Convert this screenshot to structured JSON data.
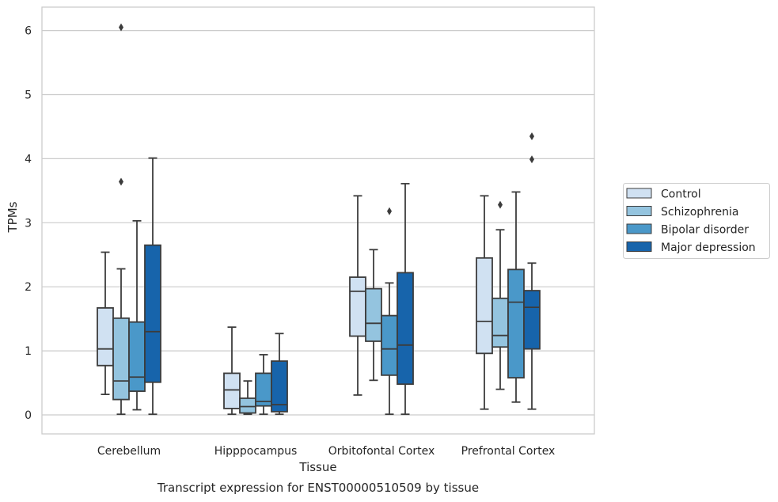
{
  "chart_data": {
    "type": "box",
    "title": "",
    "caption": "Transcript expression for ENST00000510509 by tissue",
    "xlabel": "Tissue",
    "ylabel": "TPMs",
    "ylim": [
      -0.3,
      6.35
    ],
    "yticks": [
      0,
      1,
      2,
      3,
      4,
      5,
      6
    ],
    "grid": "horizontal",
    "legend_position": "right",
    "categories": [
      "Cerebellum",
      "Hipppocampus",
      "Orbitofontal Cortex",
      "Prefrontal Cortex"
    ],
    "series": [
      {
        "name": "Control",
        "color": "#d0e1f2",
        "boxes": [
          {
            "whisker_low": 0.32,
            "q1": 0.77,
            "median": 1.03,
            "q3": 1.67,
            "whisker_high": 2.54,
            "outliers": []
          },
          {
            "whisker_low": 0.01,
            "q1": 0.1,
            "median": 0.39,
            "q3": 0.65,
            "whisker_high": 1.37,
            "outliers": []
          },
          {
            "whisker_low": 0.31,
            "q1": 1.23,
            "median": 1.93,
            "q3": 2.15,
            "whisker_high": 3.42,
            "outliers": []
          },
          {
            "whisker_low": 0.09,
            "q1": 0.96,
            "median": 1.46,
            "q3": 2.45,
            "whisker_high": 3.42,
            "outliers": []
          }
        ]
      },
      {
        "name": "Schizophrenia",
        "color": "#94c4df",
        "boxes": [
          {
            "whisker_low": 0.01,
            "q1": 0.24,
            "median": 0.53,
            "q3": 1.51,
            "whisker_high": 2.28,
            "outliers": [
              3.64,
              6.05
            ]
          },
          {
            "whisker_low": 0.01,
            "q1": 0.03,
            "median": 0.13,
            "q3": 0.26,
            "whisker_high": 0.53,
            "outliers": []
          },
          {
            "whisker_low": 0.54,
            "q1": 1.15,
            "median": 1.43,
            "q3": 1.97,
            "whisker_high": 2.58,
            "outliers": []
          },
          {
            "whisker_low": 0.4,
            "q1": 1.06,
            "median": 1.24,
            "q3": 1.82,
            "whisker_high": 2.89,
            "outliers": [
              3.28
            ]
          }
        ]
      },
      {
        "name": "Bipolar disorder",
        "color": "#4a98c9",
        "boxes": [
          {
            "whisker_low": 0.08,
            "q1": 0.37,
            "median": 0.59,
            "q3": 1.45,
            "whisker_high": 3.03,
            "outliers": []
          },
          {
            "whisker_low": 0.01,
            "q1": 0.14,
            "median": 0.21,
            "q3": 0.65,
            "whisker_high": 0.94,
            "outliers": []
          },
          {
            "whisker_low": 0.01,
            "q1": 0.62,
            "median": 1.03,
            "q3": 1.55,
            "whisker_high": 2.06,
            "outliers": [
              3.18
            ]
          },
          {
            "whisker_low": 0.2,
            "q1": 0.58,
            "median": 1.76,
            "q3": 2.27,
            "whisker_high": 3.48,
            "outliers": []
          }
        ]
      },
      {
        "name": "Major depression",
        "color": "#1764ab",
        "boxes": [
          {
            "whisker_low": 0.01,
            "q1": 0.51,
            "median": 1.3,
            "q3": 2.65,
            "whisker_high": 4.01,
            "outliers": []
          },
          {
            "whisker_low": 0.01,
            "q1": 0.05,
            "median": 0.16,
            "q3": 0.84,
            "whisker_high": 1.27,
            "outliers": []
          },
          {
            "whisker_low": 0.01,
            "q1": 0.48,
            "median": 1.09,
            "q3": 2.22,
            "whisker_high": 3.61,
            "outliers": []
          },
          {
            "whisker_low": 0.09,
            "q1": 1.03,
            "median": 1.68,
            "q3": 1.94,
            "whisker_high": 2.37,
            "outliers": [
              3.99,
              4.35
            ]
          }
        ]
      }
    ]
  }
}
